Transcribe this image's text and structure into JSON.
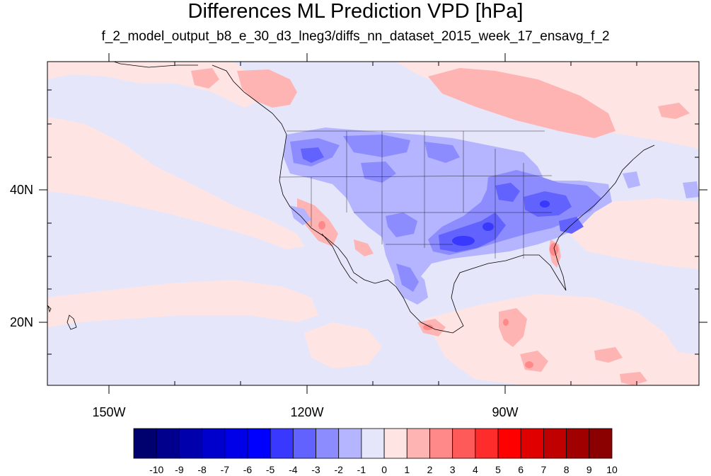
{
  "title": "Differences ML Prediction VPD [hPa]",
  "subtitle": "f_2_model_output_b8_e_30_d3_lneg3/diffs_nn_dataset_2015_week_17_ensavg_f_2",
  "lat_labels": [
    "40N",
    "20N"
  ],
  "lon_labels": [
    "150W",
    "120W",
    "90W"
  ],
  "colorbar": {
    "labels": [
      "-10",
      "-9",
      "-8",
      "-7",
      "-6",
      "-5",
      "-4",
      "-3",
      "-2",
      "-1",
      "0",
      "1",
      "2",
      "3",
      "4",
      "5",
      "6",
      "7",
      "8",
      "9",
      "10"
    ],
    "colors": [
      "#00006e",
      "#00008c",
      "#0000ad",
      "#0000cd",
      "#0000e8",
      "#0000ff",
      "#3838ff",
      "#6262ff",
      "#8c8cff",
      "#b4b4ff",
      "#e6e6fa",
      "#ffe4e4",
      "#ffb4b4",
      "#ff8888",
      "#ff5a5a",
      "#ff2c2c",
      "#ff0000",
      "#e00000",
      "#c00000",
      "#a00000",
      "#8b0000"
    ]
  },
  "colors": {
    "background_neg": "#e6e6fa",
    "background_pos": "#ffe4e4"
  }
}
